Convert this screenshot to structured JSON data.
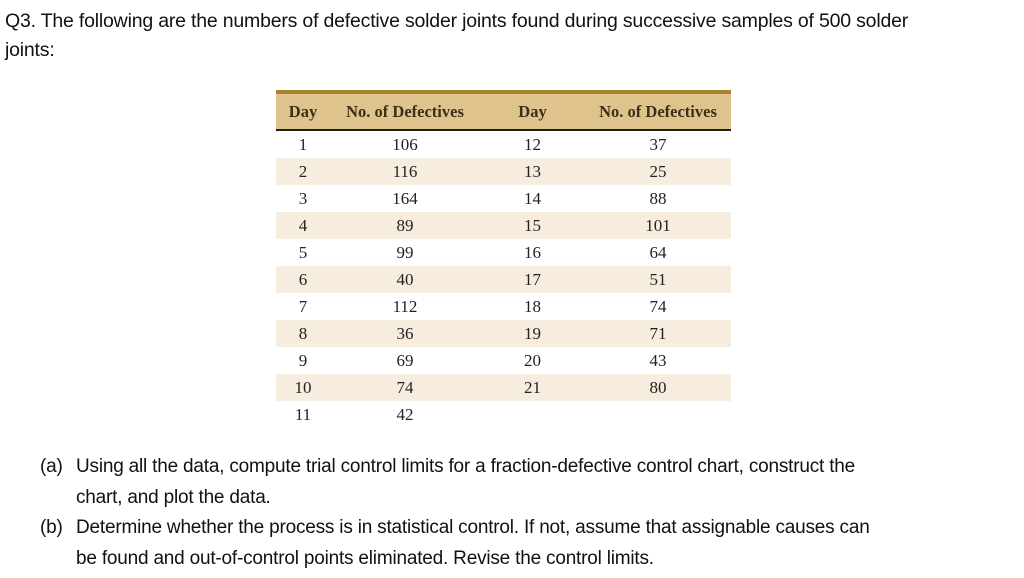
{
  "document": {
    "title_lines": [
      "Q3. The following are the numbers of defective solder joints found during successive samples of 500 solder",
      "joints:"
    ]
  },
  "table": {
    "headers": [
      "Day",
      "No. of Defectives",
      "Day",
      "No. of Defectives"
    ],
    "rows": [
      [
        "1",
        "106",
        "12",
        "37"
      ],
      [
        "2",
        "116",
        "13",
        "25"
      ],
      [
        "3",
        "164",
        "14",
        "88"
      ],
      [
        "4",
        "89",
        "15",
        "101"
      ],
      [
        "5",
        "99",
        "16",
        "64"
      ],
      [
        "6",
        "40",
        "17",
        "51"
      ],
      [
        "7",
        "112",
        "18",
        "74"
      ],
      [
        "8",
        "36",
        "19",
        "71"
      ],
      [
        "9",
        "69",
        "20",
        "43"
      ],
      [
        "10",
        "74",
        "21",
        "80"
      ],
      [
        "11",
        "42",
        "",
        ""
      ]
    ]
  },
  "questions": [
    {
      "label": "(a)",
      "lines": [
        "Using all the data, compute trial control limits for a fraction-defective control chart, construct the",
        "chart, and plot the data."
      ]
    },
    {
      "label": "(b)",
      "lines": [
        "Determine whether the process is in statistical control. If not, assume that assignable causes can",
        "be found and out-of-control points eliminated. Revise the control limits."
      ]
    }
  ],
  "colors": {
    "table_top_border": "#a5842f",
    "header_bg": "#dfc38c",
    "header_text": "#3a2f18",
    "header_rule": "#221d11",
    "stripe_bg": "#f6edde",
    "body_text": "#222222",
    "page_bg": "#ffffff"
  }
}
